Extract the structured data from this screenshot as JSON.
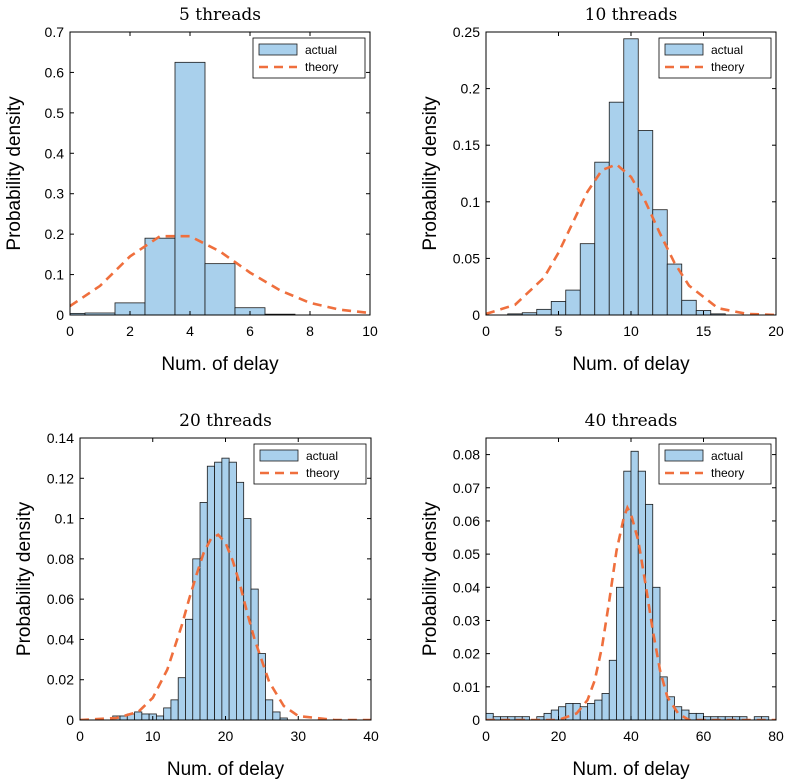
{
  "chart_data": [
    {
      "type": "bar",
      "title": "5 threads",
      "xlabel": "Num. of delay",
      "ylabel": "Probability density",
      "xlim": [
        0,
        10
      ],
      "ylim": [
        0,
        0.7
      ],
      "xticks": [
        0,
        2,
        4,
        6,
        8,
        10
      ],
      "yticks": [
        0,
        0.1,
        0.2,
        0.3,
        0.4,
        0.5,
        0.6,
        0.7
      ],
      "legend": [
        "actual",
        "theory"
      ],
      "legend_position": "top-right",
      "bin_edges": [
        -0.5,
        0.5,
        1.5,
        2.5,
        3.5,
        4.5,
        5.5,
        6.5,
        7.5,
        8.5,
        9.5
      ],
      "values": [
        0.004,
        0.005,
        0.03,
        0.19,
        0.625,
        0.127,
        0.018,
        0.002,
        0.0,
        0.0
      ],
      "theory": {
        "x": [
          0,
          1,
          2,
          3,
          4,
          5,
          6,
          7,
          8,
          9,
          10
        ],
        "y": [
          0.022,
          0.072,
          0.145,
          0.195,
          0.195,
          0.157,
          0.105,
          0.061,
          0.03,
          0.013,
          0.005
        ]
      }
    },
    {
      "type": "bar",
      "title": "10 threads",
      "xlabel": "Num. of delay",
      "ylabel": "Probability density",
      "xlim": [
        0,
        20
      ],
      "ylim": [
        0,
        0.25
      ],
      "xticks": [
        0,
        5,
        10,
        15,
        20
      ],
      "yticks": [
        0,
        0.05,
        0.1,
        0.15,
        0.2,
        0.25
      ],
      "legend": [
        "actual",
        "theory"
      ],
      "legend_position": "top-right",
      "bin_edges": [
        0.5,
        1.5,
        2.5,
        3.5,
        4.5,
        5.5,
        6.5,
        7.5,
        8.5,
        9.5,
        10.5,
        11.5,
        12.5,
        13.5,
        14.5,
        15.5,
        16.5
      ],
      "values": [
        0.0,
        0.001,
        0.002,
        0.005,
        0.012,
        0.022,
        0.063,
        0.135,
        0.188,
        0.244,
        0.163,
        0.093,
        0.045,
        0.013,
        0.004,
        0.001
      ],
      "theory": {
        "x": [
          0,
          2,
          4,
          5,
          6,
          7,
          8,
          9,
          10,
          11,
          12,
          13,
          14,
          16,
          18,
          20
        ],
        "y": [
          0.001,
          0.009,
          0.033,
          0.055,
          0.082,
          0.109,
          0.128,
          0.133,
          0.122,
          0.1,
          0.072,
          0.046,
          0.026,
          0.006,
          0.001,
          0.0
        ]
      }
    },
    {
      "type": "bar",
      "title": "20 threads",
      "xlabel": "Num. of delay",
      "ylabel": "Probability density",
      "xlim": [
        0,
        40
      ],
      "ylim": [
        0,
        0.14
      ],
      "xticks": [
        0,
        10,
        20,
        30,
        40
      ],
      "yticks": [
        0,
        0.02,
        0.04,
        0.06,
        0.08,
        0.1,
        0.12,
        0.14
      ],
      "legend": [
        "actual",
        "theory"
      ],
      "legend_position": "top-right",
      "bin_edges": [
        4.5,
        5.5,
        6.5,
        7.5,
        8.5,
        9.5,
        10.5,
        11.5,
        12.5,
        13.5,
        14.5,
        15.5,
        16.5,
        17.5,
        18.5,
        19.5,
        20.5,
        21.5,
        22.5,
        23.5,
        24.5,
        25.5,
        26.5,
        27.5,
        28.5
      ],
      "values": [
        0.002,
        0.002,
        0.003,
        0.004,
        0.003,
        0.003,
        0.002,
        0.006,
        0.01,
        0.021,
        0.05,
        0.08,
        0.108,
        0.126,
        0.128,
        0.13,
        0.128,
        0.118,
        0.1,
        0.065,
        0.033,
        0.01,
        0.004,
        0.001
      ],
      "theory": {
        "x": [
          0,
          5,
          8,
          10,
          12,
          14,
          15,
          16,
          17,
          18,
          19,
          20,
          21,
          22,
          23,
          24,
          26,
          28,
          30,
          35,
          40
        ],
        "y": [
          0.0,
          0.001,
          0.004,
          0.011,
          0.025,
          0.047,
          0.06,
          0.072,
          0.083,
          0.09,
          0.092,
          0.088,
          0.079,
          0.067,
          0.053,
          0.04,
          0.019,
          0.007,
          0.002,
          0.0,
          0.0
        ]
      }
    },
    {
      "type": "bar",
      "title": "40 threads",
      "xlabel": "Num. of delay",
      "ylabel": "Probability density",
      "xlim": [
        0,
        80
      ],
      "ylim": [
        0,
        0.085
      ],
      "xticks": [
        0,
        20,
        40,
        60,
        80
      ],
      "yticks": [
        0,
        0.01,
        0.02,
        0.03,
        0.04,
        0.05,
        0.06,
        0.07,
        0.08
      ],
      "legend": [
        "actual",
        "theory"
      ],
      "legend_position": "top-right",
      "bin_edges": [
        0,
        2,
        4,
        6,
        8,
        10,
        12,
        14,
        16,
        18,
        20,
        22,
        24,
        26,
        28,
        30,
        32,
        34,
        36,
        38,
        40,
        42,
        44,
        46,
        48,
        50,
        52,
        54,
        56,
        58,
        60,
        62,
        64,
        66,
        68,
        70,
        72,
        74,
        76,
        78
      ],
      "values": [
        0.002,
        0.001,
        0.001,
        0.001,
        0.001,
        0.001,
        0.0,
        0.001,
        0.002,
        0.003,
        0.004,
        0.005,
        0.005,
        0.004,
        0.005,
        0.006,
        0.008,
        0.018,
        0.04,
        0.075,
        0.081,
        0.075,
        0.065,
        0.04,
        0.013,
        0.007,
        0.004,
        0.003,
        0.002,
        0.002,
        0.001,
        0.001,
        0.001,
        0.001,
        0.001,
        0.001,
        0.0,
        0.001,
        0.001
      ],
      "theory": {
        "x": [
          0,
          20,
          25,
          28,
          30,
          32,
          34,
          36,
          38,
          39,
          40,
          42,
          44,
          46,
          48,
          50,
          53,
          56,
          60,
          80
        ],
        "y": [
          0.0,
          0.0,
          0.002,
          0.006,
          0.012,
          0.022,
          0.036,
          0.051,
          0.061,
          0.064,
          0.062,
          0.054,
          0.041,
          0.027,
          0.015,
          0.007,
          0.002,
          0.0,
          0.0,
          0.0
        ]
      }
    }
  ],
  "colors": {
    "bar_fill": "#a9d0ec",
    "bar_edge": "#1a1a1a",
    "theory_line": "#ef6f3d"
  }
}
